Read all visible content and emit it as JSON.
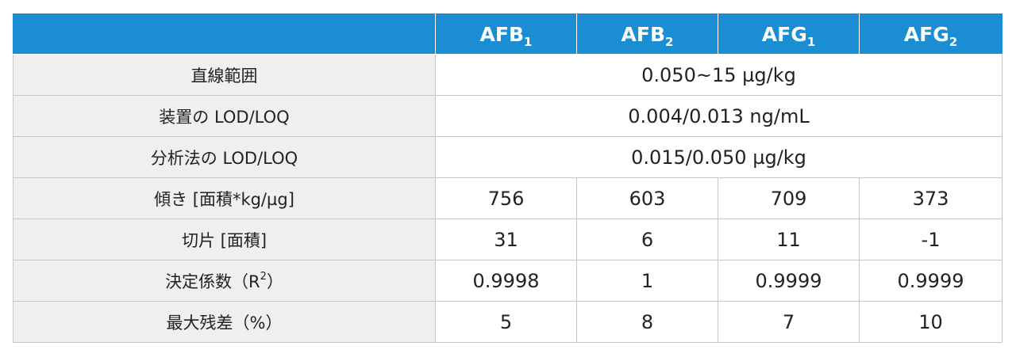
{
  "header": {
    "corner": "",
    "columns": [
      {
        "base": "AFB",
        "sub": "1"
      },
      {
        "base": "AFB",
        "sub": "2"
      },
      {
        "base": "AFG",
        "sub": "1"
      },
      {
        "base": "AFG",
        "sub": "2"
      }
    ]
  },
  "rows": {
    "linear_range": {
      "label": "直線範囲",
      "value": "0.050~15 µg/kg"
    },
    "instrument_lod_loq": {
      "label": "装置の LOD/LOQ",
      "value": "0.004/0.013 ng/mL"
    },
    "method_lod_loq": {
      "label": "分析法の LOD/LOQ",
      "value": "0.015/0.050 µg/kg"
    },
    "slope": {
      "label": "傾き [面積*kg/µg]",
      "values": [
        "756",
        "603",
        "709",
        "373"
      ]
    },
    "intercept": {
      "label": "切片 [面積]",
      "values": [
        "31",
        "6",
        "11",
        "-1"
      ]
    },
    "r_squared": {
      "label_prefix": "決定係数（R",
      "label_sup": "2",
      "label_suffix": "）",
      "values": [
        "0.9998",
        "1",
        "0.9999",
        "0.9999"
      ]
    },
    "max_residual": {
      "label": "最大残差（%）",
      "values": [
        "5",
        "8",
        "7",
        "10"
      ]
    }
  }
}
